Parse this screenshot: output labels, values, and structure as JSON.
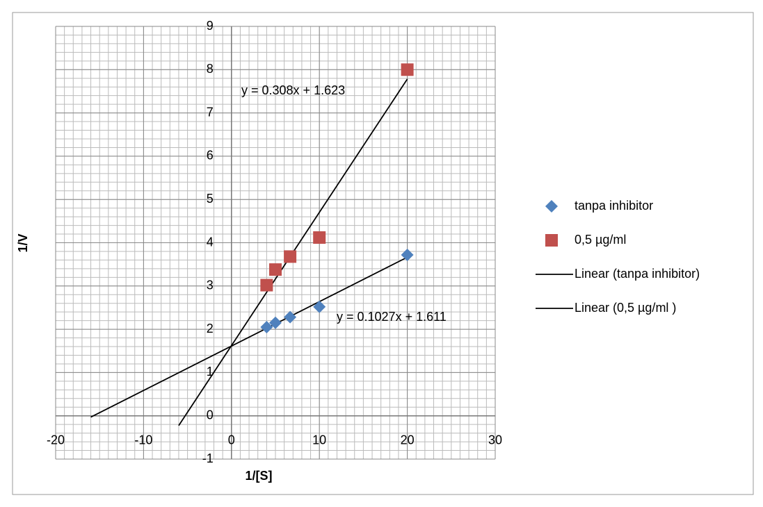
{
  "chart_data": {
    "type": "scatter",
    "x_label": "1/[S]",
    "y_label": "1/V",
    "xlim": [
      -20,
      30
    ],
    "xticks": [
      -20,
      -10,
      0,
      10,
      20,
      30
    ],
    "ylim": [
      -1,
      9
    ],
    "yticks": [
      -1,
      0,
      1,
      2,
      3,
      4,
      5,
      6,
      7,
      8,
      9
    ],
    "grid": true,
    "minor_xstep": 1,
    "minor_ystep": 0.2,
    "legend": "right",
    "series": [
      {
        "name": "tanpa inhibitor",
        "kind": "marker",
        "marker": "diamond",
        "color": "#4f81bd",
        "x": [
          4,
          5,
          6.67,
          10,
          20
        ],
        "values": [
          2.05,
          2.15,
          2.28,
          2.52,
          3.72
        ]
      },
      {
        "name": "0,5 µg/ml",
        "kind": "marker",
        "marker": "square",
        "color": "#c0504d",
        "x": [
          4,
          5,
          6.67,
          10,
          20
        ],
        "values": [
          3.02,
          3.38,
          3.68,
          4.12,
          8.0
        ]
      },
      {
        "name": "Linear (tanpa inhibitor)",
        "kind": "line",
        "color": "#000000",
        "x": [
          -16,
          20
        ],
        "values": [
          -0.03,
          3.665
        ]
      },
      {
        "name": "Linear (0,5 µg/ml )",
        "kind": "line",
        "color": "#000000",
        "x": [
          -6,
          20
        ],
        "values": [
          -0.225,
          7.783
        ]
      }
    ],
    "annotations": [
      "y = 0.308x + 1.623",
      "y = 0.1027x + 1.611"
    ]
  }
}
